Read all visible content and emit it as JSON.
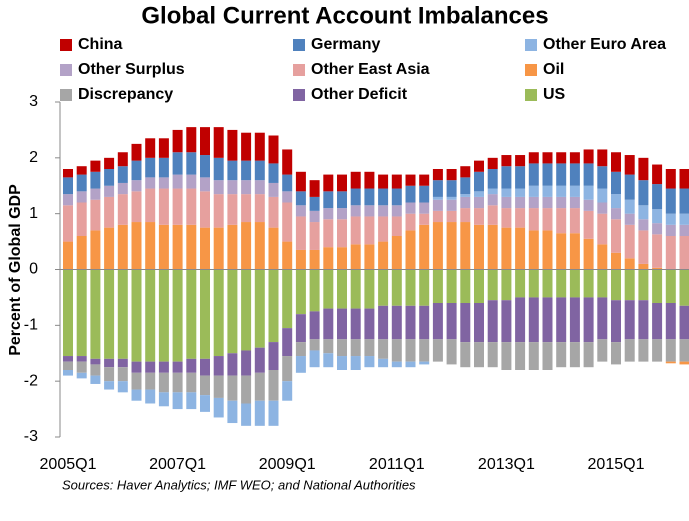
{
  "chart_data": {
    "type": "stacked_bar",
    "title": "Global Current Account Imbalances",
    "y_label": "Percent of Global GDP",
    "source": "Sources: Haver Analytics; IMF WEO; and National Authorities",
    "categories": [
      "2005Q1",
      null,
      null,
      null,
      null,
      null,
      null,
      null,
      "2007Q1",
      null,
      null,
      null,
      null,
      null,
      null,
      null,
      "2009Q1",
      null,
      null,
      null,
      null,
      null,
      null,
      null,
      "2011Q1",
      null,
      null,
      null,
      null,
      null,
      null,
      null,
      "2013Q1",
      null,
      null,
      null,
      null,
      null,
      null,
      null,
      "2015Q1",
      null,
      null,
      null,
      null,
      null
    ],
    "ylim": [
      -3,
      3
    ],
    "yticks": [
      -3,
      -2,
      -1,
      0,
      1,
      2,
      3
    ],
    "series": [
      {
        "name": "China",
        "color": "#c00000",
        "values": [
          0.15,
          0.15,
          0.2,
          0.2,
          0.25,
          0.3,
          0.35,
          0.35,
          0.4,
          0.45,
          0.5,
          0.55,
          0.55,
          0.5,
          0.5,
          0.5,
          0.45,
          0.35,
          0.3,
          0.3,
          0.3,
          0.3,
          0.3,
          0.25,
          0.25,
          0.2,
          0.2,
          0.2,
          0.2,
          0.2,
          0.2,
          0.2,
          0.2,
          0.2,
          0.2,
          0.2,
          0.2,
          0.2,
          0.25,
          0.3,
          0.35,
          0.35,
          0.4,
          0.35,
          0.35,
          0.35
        ]
      },
      {
        "name": "Germany",
        "color": "#4f81bd",
        "values": [
          0.3,
          0.3,
          0.3,
          0.3,
          0.3,
          0.35,
          0.35,
          0.35,
          0.4,
          0.4,
          0.4,
          0.4,
          0.35,
          0.35,
          0.35,
          0.35,
          0.3,
          0.25,
          0.25,
          0.3,
          0.3,
          0.3,
          0.3,
          0.3,
          0.3,
          0.3,
          0.3,
          0.3,
          0.3,
          0.3,
          0.35,
          0.35,
          0.4,
          0.4,
          0.4,
          0.4,
          0.4,
          0.4,
          0.4,
          0.4,
          0.4,
          0.45,
          0.45,
          0.45,
          0.45,
          0.45
        ]
      },
      {
        "name": "Other Euro Area",
        "color": "#8db4e2",
        "values": [
          -0.1,
          -0.1,
          -0.15,
          -0.15,
          -0.2,
          -0.2,
          -0.25,
          -0.25,
          -0.3,
          -0.3,
          -0.3,
          -0.35,
          -0.4,
          -0.4,
          -0.45,
          -0.45,
          -0.35,
          -0.3,
          -0.3,
          -0.25,
          -0.25,
          -0.25,
          -0.2,
          -0.15,
          -0.1,
          -0.1,
          -0.05,
          0.05,
          0.05,
          0.05,
          0.1,
          0.1,
          0.15,
          0.15,
          0.2,
          0.2,
          0.2,
          0.2,
          0.25,
          0.25,
          0.25,
          0.25,
          0.25,
          0.25,
          0.2,
          0.2
        ]
      },
      {
        "name": "Other Surplus",
        "color": "#b3a2c7",
        "values": [
          0.2,
          0.2,
          0.2,
          0.2,
          0.2,
          0.2,
          0.2,
          0.2,
          0.25,
          0.25,
          0.25,
          0.25,
          0.25,
          0.25,
          0.25,
          0.25,
          0.2,
          0.2,
          0.2,
          0.2,
          0.2,
          0.2,
          0.2,
          0.2,
          0.2,
          0.2,
          0.2,
          0.2,
          0.2,
          0.2,
          0.2,
          0.2,
          0.2,
          0.2,
          0.2,
          0.2,
          0.2,
          0.2,
          0.2,
          0.2,
          0.2,
          0.2,
          0.2,
          0.2,
          0.2,
          0.2
        ]
      },
      {
        "name": "Other East Asia",
        "color": "#e6a09e",
        "values": [
          0.65,
          0.6,
          0.55,
          0.55,
          0.55,
          0.55,
          0.6,
          0.65,
          0.65,
          0.65,
          0.65,
          0.6,
          0.55,
          0.5,
          0.5,
          0.55,
          0.7,
          0.6,
          0.5,
          0.5,
          0.5,
          0.5,
          0.5,
          0.45,
          0.35,
          0.3,
          0.2,
          0.2,
          0.2,
          0.25,
          0.3,
          0.35,
          0.35,
          0.35,
          0.4,
          0.4,
          0.45,
          0.45,
          0.5,
          0.55,
          0.6,
          0.6,
          0.6,
          0.6,
          0.6,
          0.6
        ]
      },
      {
        "name": "Oil",
        "color": "#f79646",
        "values": [
          0.5,
          0.6,
          0.7,
          0.75,
          0.8,
          0.85,
          0.85,
          0.8,
          0.8,
          0.8,
          0.75,
          0.75,
          0.8,
          0.85,
          0.85,
          0.75,
          0.5,
          0.35,
          0.35,
          0.4,
          0.4,
          0.45,
          0.45,
          0.5,
          0.6,
          0.7,
          0.8,
          0.85,
          0.85,
          0.85,
          0.8,
          0.8,
          0.75,
          0.75,
          0.7,
          0.7,
          0.65,
          0.65,
          0.55,
          0.45,
          0.3,
          0.2,
          0.1,
          0.03,
          -0.03,
          -0.05
        ]
      },
      {
        "name": "Discrepancy",
        "color": "#a6a6a6",
        "values": [
          -0.15,
          -0.2,
          -0.2,
          -0.25,
          -0.25,
          -0.3,
          -0.3,
          -0.35,
          -0.35,
          -0.35,
          -0.35,
          -0.4,
          -0.45,
          -0.5,
          -0.5,
          -0.55,
          -0.45,
          -0.25,
          -0.2,
          -0.25,
          -0.3,
          -0.3,
          -0.3,
          -0.35,
          -0.4,
          -0.4,
          -0.4,
          -0.4,
          -0.45,
          -0.45,
          -0.45,
          -0.45,
          -0.5,
          -0.5,
          -0.5,
          -0.5,
          -0.45,
          -0.45,
          -0.45,
          -0.4,
          -0.4,
          -0.4,
          -0.4,
          -0.4,
          -0.4,
          -0.4
        ]
      },
      {
        "name": "Other Deficit",
        "color": "#8064a2",
        "values": [
          -0.1,
          -0.1,
          -0.1,
          -0.15,
          -0.15,
          -0.2,
          -0.2,
          -0.2,
          -0.2,
          -0.25,
          -0.3,
          -0.35,
          -0.4,
          -0.45,
          -0.45,
          -0.5,
          -0.5,
          -0.5,
          -0.5,
          -0.55,
          -0.55,
          -0.55,
          -0.55,
          -0.6,
          -0.6,
          -0.6,
          -0.6,
          -0.65,
          -0.65,
          -0.7,
          -0.7,
          -0.75,
          -0.75,
          -0.8,
          -0.8,
          -0.8,
          -0.8,
          -0.8,
          -0.8,
          -0.75,
          -0.75,
          -0.7,
          -0.7,
          -0.65,
          -0.65,
          -0.6
        ]
      },
      {
        "name": "US",
        "color": "#9bbb59",
        "values": [
          -1.55,
          -1.55,
          -1.6,
          -1.6,
          -1.6,
          -1.65,
          -1.65,
          -1.65,
          -1.65,
          -1.6,
          -1.6,
          -1.55,
          -1.5,
          -1.45,
          -1.4,
          -1.3,
          -1.05,
          -0.8,
          -0.75,
          -0.7,
          -0.7,
          -0.7,
          -0.7,
          -0.65,
          -0.65,
          -0.65,
          -0.65,
          -0.6,
          -0.6,
          -0.6,
          -0.6,
          -0.55,
          -0.55,
          -0.5,
          -0.5,
          -0.5,
          -0.5,
          -0.5,
          -0.5,
          -0.5,
          -0.55,
          -0.55,
          -0.55,
          -0.6,
          -0.6,
          -0.65
        ]
      }
    ]
  }
}
